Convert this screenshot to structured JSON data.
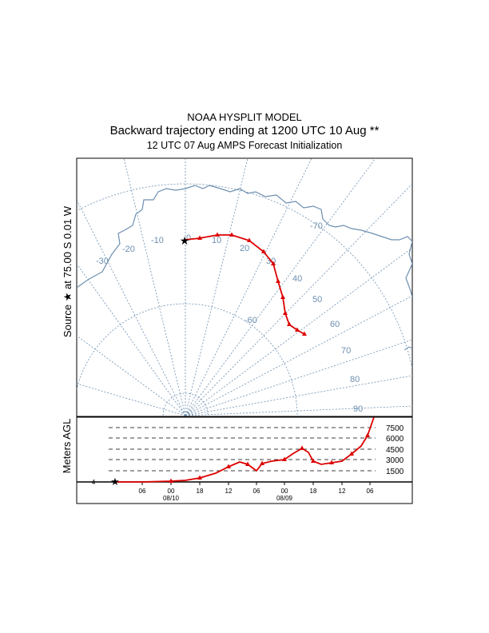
{
  "header": {
    "model": "NOAA HYSPLIT MODEL",
    "title": "Backward trajectory ending at 1200 UTC 10 Aug **",
    "subtitle": "12 UTC 07 Aug    AMPS  Forecast Initialization"
  },
  "side_label": "Source ★ at   75.00 S    0.01 W",
  "colors": {
    "trajectory": "#dd0000",
    "grid": "#6d8fb0",
    "coast": "#6d8fb0"
  },
  "map": {
    "lon_labels": [
      "-30",
      "-20",
      "-10",
      "0",
      "10",
      "20",
      "30"
    ],
    "lat_labels": [
      "-70",
      "40",
      "50",
      "-60",
      "60",
      "70",
      "80",
      "90"
    ],
    "trajectory_lon": [
      0,
      4,
      9,
      16,
      22,
      27,
      30,
      32,
      34,
      35,
      37,
      39,
      42
    ],
    "trajectory_lat": [
      -75,
      -75.6,
      -76.3,
      -77.2,
      -78.5,
      -79.8,
      -81.2,
      -82.5,
      -83.8,
      -85,
      -86.2,
      -87.3,
      -88.3
    ]
  },
  "height_panel": {
    "ylabel": "Meters AGL",
    "levels": [
      "7500",
      "6000",
      "4500",
      "3000",
      "1500"
    ],
    "level_values": [
      7500,
      6000,
      4500,
      3000,
      1500
    ],
    "time_ticks": [
      "06",
      "00",
      "18",
      "12",
      "06",
      "00",
      "18",
      "12",
      "06"
    ],
    "dates": [
      "08/10",
      "08/09"
    ],
    "start_tick": "4",
    "trajectory_heights": [
      0,
      0,
      50,
      100,
      300,
      600,
      1500,
      2600,
      1200,
      3000,
      2000,
      3500,
      4200,
      2800,
      2500,
      3200,
      4500,
      8200
    ]
  }
}
